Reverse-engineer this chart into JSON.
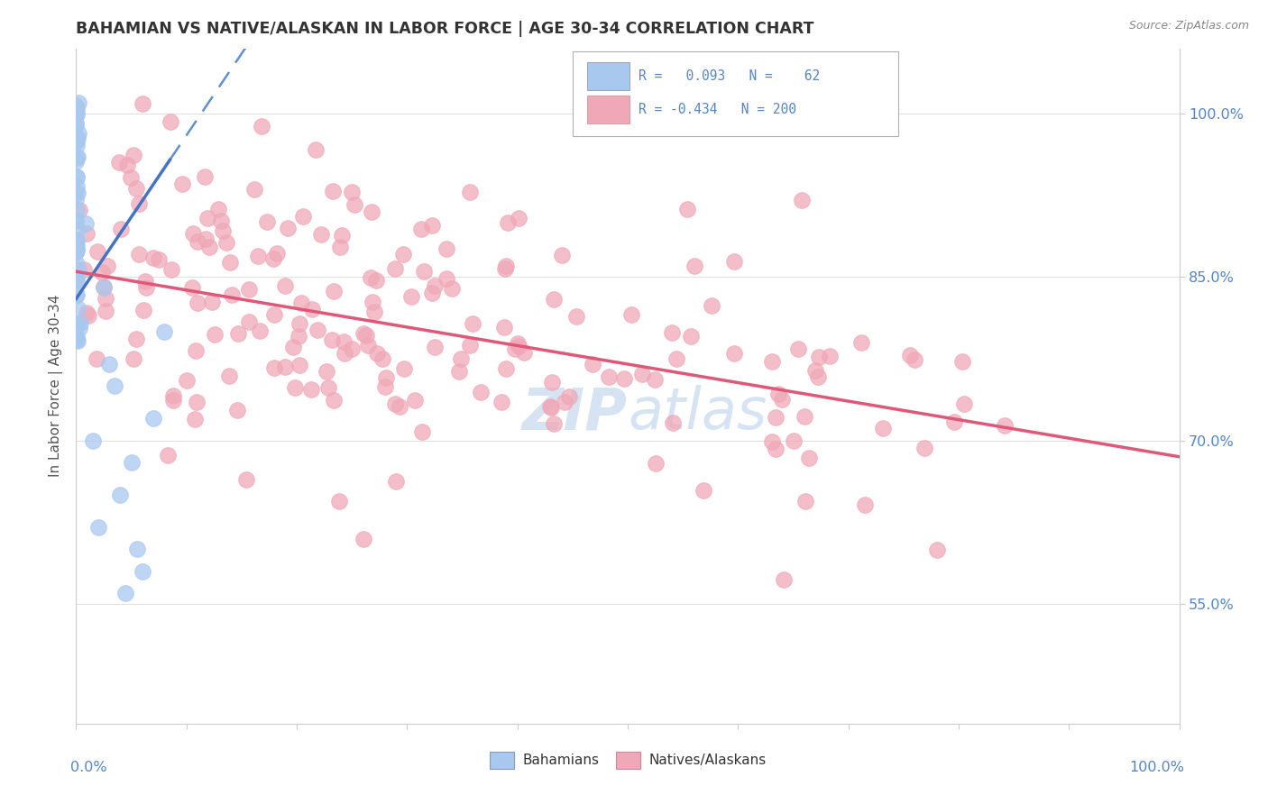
{
  "title": "BAHAMIAN VS NATIVE/ALASKAN IN LABOR FORCE | AGE 30-34 CORRELATION CHART",
  "source_text": "Source: ZipAtlas.com",
  "ylabel": "In Labor Force | Age 30-34",
  "ytick_labels": [
    "55.0%",
    "70.0%",
    "85.0%",
    "100.0%"
  ],
  "ytick_values": [
    0.55,
    0.7,
    0.85,
    1.0
  ],
  "bahamian_color": "#a8c8f0",
  "native_color": "#f0a8b8",
  "trendline_bahamian_color": "#4472c4",
  "trendline_native_color": "#e05878",
  "trendline_dashed_color": "#6090d0",
  "background_color": "#ffffff",
  "watermark_color": "#c5d8ee",
  "grid_color": "#e0e0e0",
  "tick_label_color": "#5585c5",
  "title_color": "#333333",
  "source_color": "#888888",
  "ylabel_color": "#555555"
}
